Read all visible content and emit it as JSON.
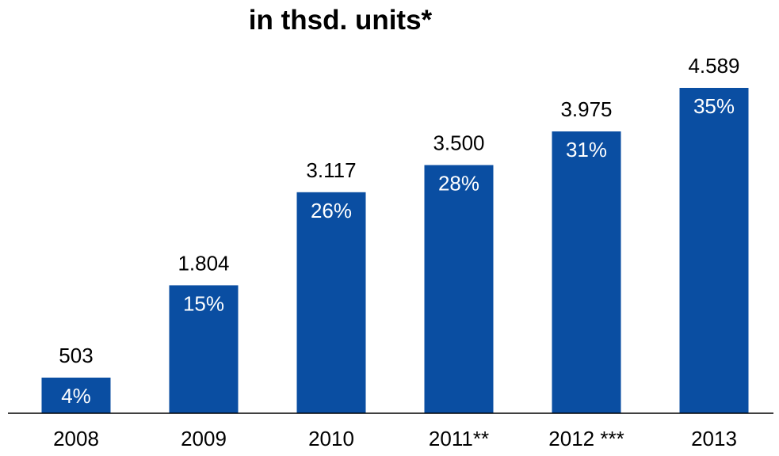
{
  "chart_data": {
    "type": "bar",
    "title": "in thsd. units*",
    "categories": [
      "2008",
      "2009",
      "2010",
      "2011**",
      "2012 ***",
      "2013"
    ],
    "values": [
      503,
      1804,
      3117,
      3500,
      3975,
      4589
    ],
    "value_labels": [
      "503",
      "1.804",
      "3.117",
      "3.500",
      "3.975",
      "4.589"
    ],
    "share_labels": [
      "4%",
      "15%",
      "26%",
      "28%",
      "31%",
      "35%"
    ],
    "ylim": [
      0,
      4589
    ],
    "grid": false,
    "bar_color": "#0a4ea2"
  }
}
